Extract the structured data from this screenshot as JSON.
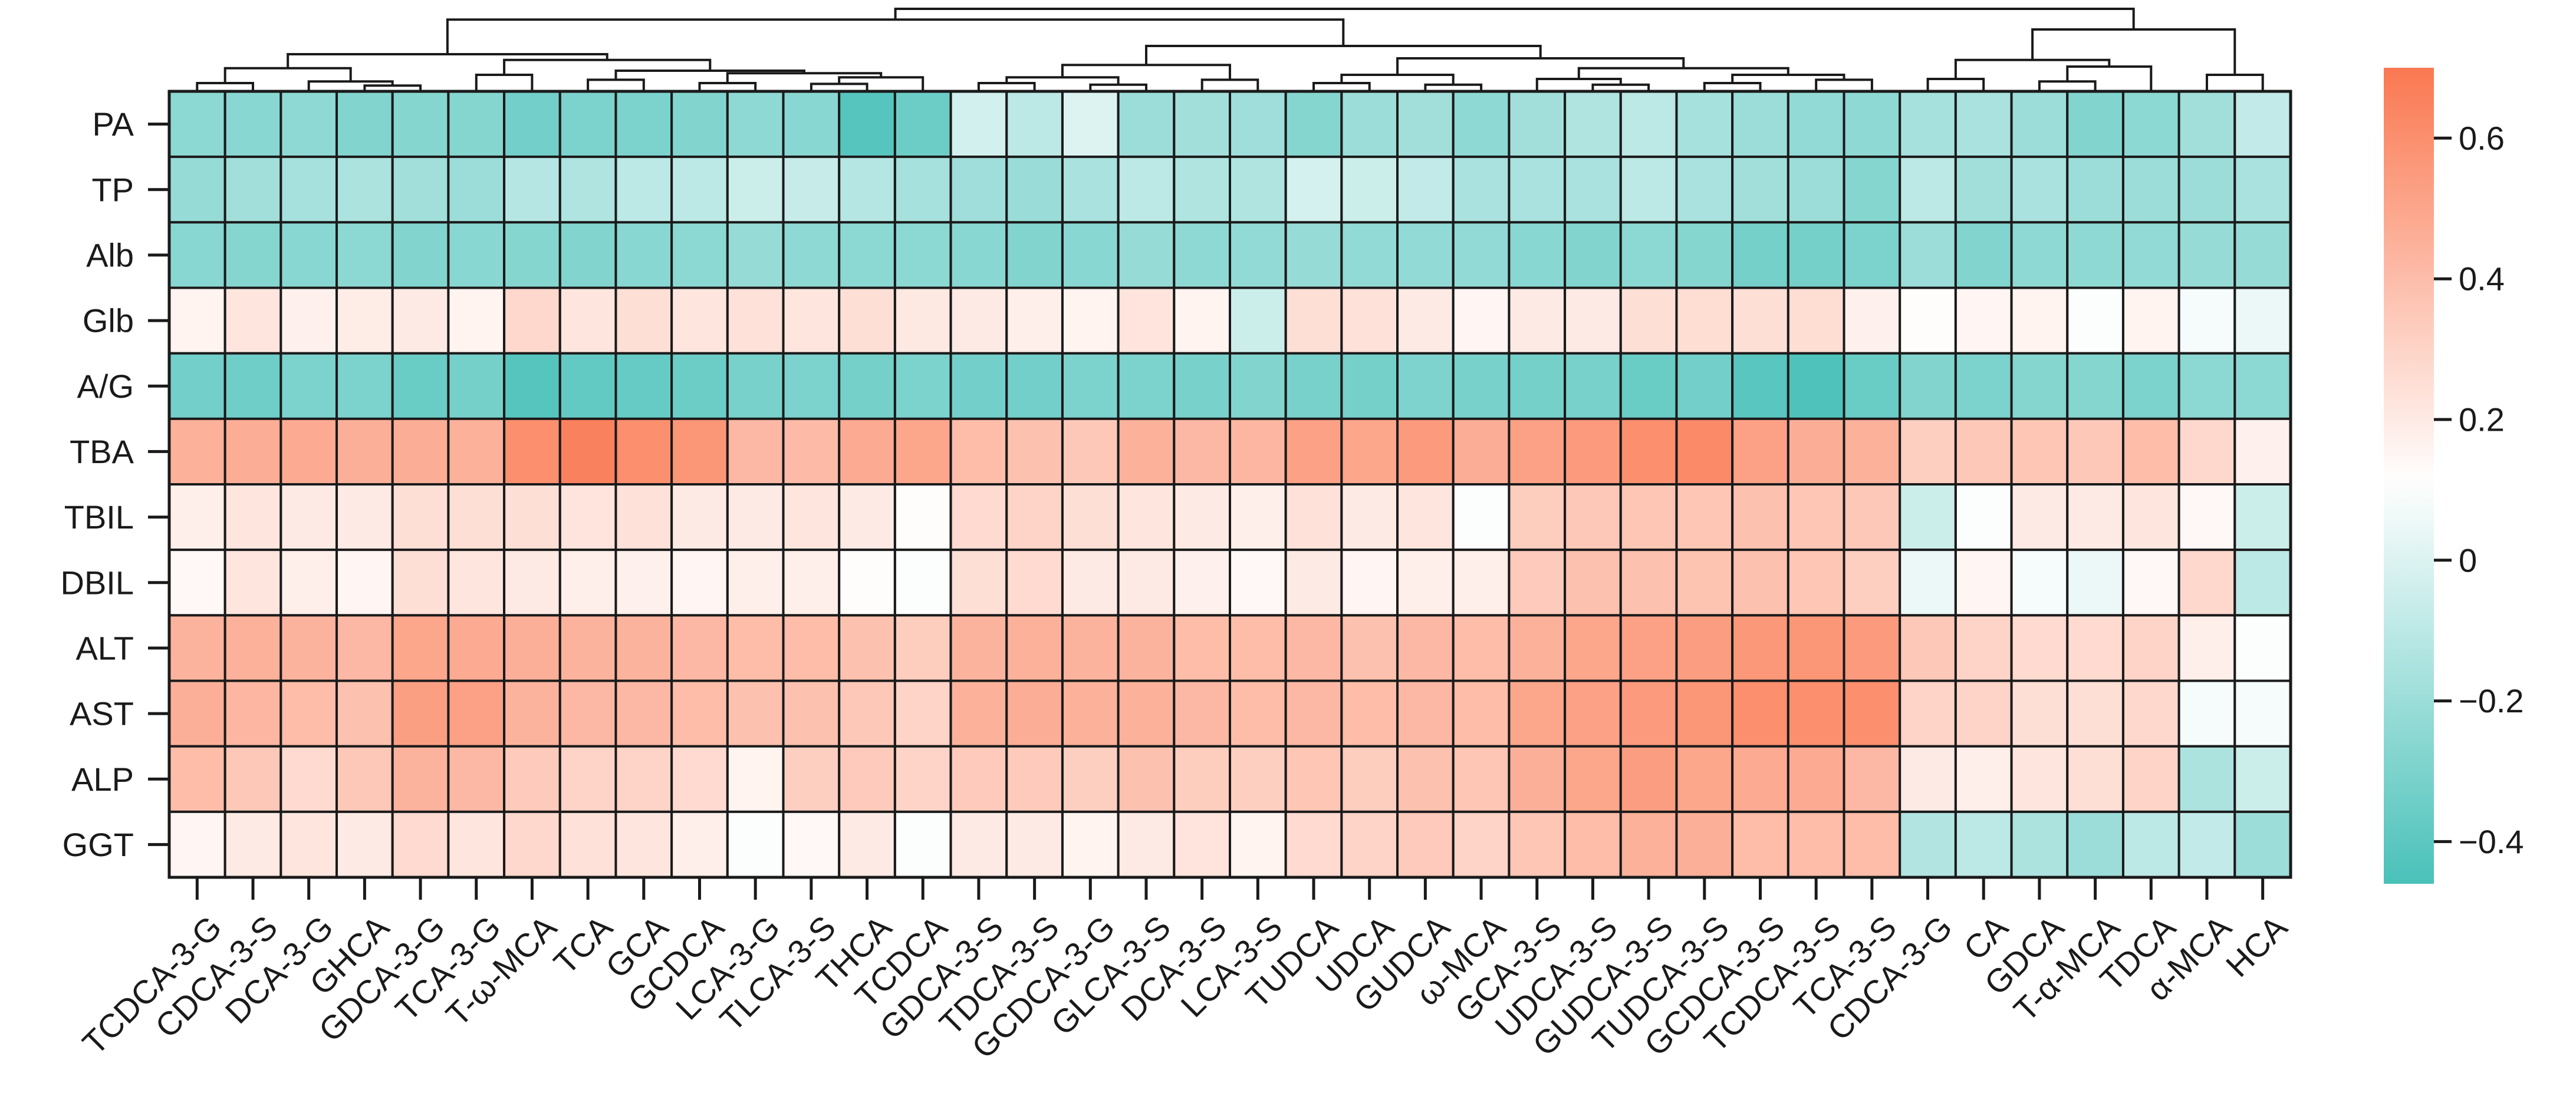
{
  "chart_data": {
    "type": "heatmap",
    "title": "",
    "xlabel": "",
    "ylabel": "",
    "rows": [
      "PA",
      "TP",
      "Alb",
      "Glb",
      "A/G",
      "TBA",
      "TBIL",
      "DBIL",
      "ALT",
      "AST",
      "ALP",
      "GGT"
    ],
    "columns": [
      "TCDCA-3-G",
      "CDCA-3-S",
      "DCA-3-G",
      "GHCA",
      "GDCA-3-G",
      "TCA-3-G",
      "T-ω-MCA",
      "TCA",
      "GCA",
      "GCDCA",
      "LCA-3-G",
      "TLCA-3-S",
      "THCA",
      "TCDCA",
      "GDCA-3-S",
      "TDCA-3-S",
      "GCDCA-3-G",
      "GLCA-3-S",
      "DCA-3-S",
      "LCA-3-S",
      "TUDCA",
      "UDCA",
      "GUDCA",
      "ω-MCA",
      "GCA-3-S",
      "UDCA-3-S",
      "GUDCA-3-S",
      "TUDCA-3-S",
      "GCDCA-3-S",
      "TCDCA-3-S",
      "TCA-3-S",
      "CDCA-3-G",
      "CA",
      "GDCA",
      "T-α-MCA",
      "TDCA",
      "α-MCA",
      "HCA"
    ],
    "values": [
      [
        -0.25,
        -0.26,
        -0.24,
        -0.28,
        -0.27,
        -0.27,
        -0.33,
        -0.3,
        -0.3,
        -0.28,
        -0.24,
        -0.26,
        -0.42,
        -0.35,
        -0.03,
        -0.1,
        0.0,
        -0.2,
        -0.18,
        -0.19,
        -0.27,
        -0.2,
        -0.18,
        -0.24,
        -0.18,
        -0.14,
        -0.1,
        -0.17,
        -0.2,
        -0.23,
        -0.24,
        -0.17,
        -0.16,
        -0.2,
        -0.28,
        -0.25,
        -0.18,
        -0.08
      ],
      [
        -0.22,
        -0.18,
        -0.17,
        -0.15,
        -0.18,
        -0.2,
        -0.12,
        -0.14,
        -0.1,
        -0.1,
        -0.05,
        -0.07,
        -0.12,
        -0.17,
        -0.19,
        -0.21,
        -0.16,
        -0.1,
        -0.14,
        -0.14,
        -0.02,
        -0.05,
        -0.08,
        -0.16,
        -0.16,
        -0.16,
        -0.1,
        -0.16,
        -0.18,
        -0.2,
        -0.27,
        -0.1,
        -0.18,
        -0.16,
        -0.2,
        -0.2,
        -0.2,
        -0.16
      ],
      [
        -0.26,
        -0.27,
        -0.26,
        -0.25,
        -0.28,
        -0.26,
        -0.27,
        -0.28,
        -0.26,
        -0.25,
        -0.22,
        -0.24,
        -0.25,
        -0.25,
        -0.26,
        -0.28,
        -0.26,
        -0.22,
        -0.24,
        -0.23,
        -0.22,
        -0.23,
        -0.23,
        -0.23,
        -0.26,
        -0.28,
        -0.25,
        -0.27,
        -0.32,
        -0.32,
        -0.3,
        -0.2,
        -0.28,
        -0.24,
        -0.24,
        -0.23,
        -0.22,
        -0.22
      ],
      [
        0.16,
        0.22,
        0.17,
        0.19,
        0.2,
        0.16,
        0.28,
        0.22,
        0.25,
        0.22,
        0.24,
        0.22,
        0.25,
        0.21,
        0.2,
        0.18,
        0.16,
        0.23,
        0.16,
        -0.05,
        0.25,
        0.24,
        0.2,
        0.15,
        0.2,
        0.2,
        0.25,
        0.26,
        0.25,
        0.26,
        0.17,
        0.12,
        0.15,
        0.16,
        0.1,
        0.16,
        0.08,
        0.05
      ],
      [
        -0.33,
        -0.34,
        -0.3,
        -0.3,
        -0.36,
        -0.32,
        -0.42,
        -0.38,
        -0.37,
        -0.35,
        -0.31,
        -0.3,
        -0.32,
        -0.3,
        -0.33,
        -0.33,
        -0.3,
        -0.3,
        -0.31,
        -0.28,
        -0.31,
        -0.32,
        -0.29,
        -0.31,
        -0.32,
        -0.31,
        -0.36,
        -0.33,
        -0.41,
        -0.44,
        -0.36,
        -0.28,
        -0.3,
        -0.27,
        -0.27,
        -0.3,
        -0.25,
        -0.25
      ],
      [
        0.45,
        0.47,
        0.48,
        0.46,
        0.47,
        0.45,
        0.6,
        0.66,
        0.6,
        0.57,
        0.42,
        0.41,
        0.48,
        0.5,
        0.4,
        0.38,
        0.35,
        0.45,
        0.42,
        0.43,
        0.52,
        0.5,
        0.55,
        0.47,
        0.52,
        0.55,
        0.6,
        0.62,
        0.52,
        0.47,
        0.45,
        0.32,
        0.35,
        0.36,
        0.35,
        0.4,
        0.28,
        0.17
      ],
      [
        0.18,
        0.22,
        0.2,
        0.2,
        0.25,
        0.25,
        0.25,
        0.23,
        0.24,
        0.2,
        0.2,
        0.22,
        0.2,
        0.12,
        0.27,
        0.3,
        0.25,
        0.22,
        0.2,
        0.18,
        0.24,
        0.2,
        0.22,
        0.1,
        0.33,
        0.35,
        0.36,
        0.36,
        0.38,
        0.36,
        0.35,
        -0.05,
        0.1,
        0.2,
        0.2,
        0.22,
        0.14,
        -0.05
      ],
      [
        0.14,
        0.22,
        0.18,
        0.15,
        0.25,
        0.22,
        0.2,
        0.18,
        0.17,
        0.15,
        0.18,
        0.18,
        0.12,
        0.1,
        0.25,
        0.27,
        0.2,
        0.2,
        0.17,
        0.14,
        0.2,
        0.15,
        0.18,
        0.18,
        0.34,
        0.38,
        0.38,
        0.37,
        0.38,
        0.36,
        0.32,
        0.05,
        0.15,
        0.08,
        0.05,
        0.14,
        0.28,
        -0.1
      ],
      [
        0.44,
        0.45,
        0.44,
        0.42,
        0.5,
        0.48,
        0.46,
        0.44,
        0.44,
        0.42,
        0.4,
        0.4,
        0.38,
        0.33,
        0.44,
        0.45,
        0.44,
        0.44,
        0.4,
        0.4,
        0.42,
        0.38,
        0.42,
        0.4,
        0.45,
        0.5,
        0.52,
        0.54,
        0.56,
        0.57,
        0.55,
        0.35,
        0.3,
        0.27,
        0.27,
        0.3,
        0.18,
        0.1
      ],
      [
        0.46,
        0.43,
        0.4,
        0.38,
        0.53,
        0.52,
        0.44,
        0.42,
        0.42,
        0.4,
        0.38,
        0.38,
        0.35,
        0.3,
        0.45,
        0.47,
        0.45,
        0.45,
        0.42,
        0.4,
        0.42,
        0.4,
        0.42,
        0.4,
        0.5,
        0.52,
        0.55,
        0.57,
        0.6,
        0.6,
        0.6,
        0.3,
        0.3,
        0.25,
        0.25,
        0.28,
        0.08,
        0.08
      ],
      [
        0.4,
        0.35,
        0.27,
        0.35,
        0.44,
        0.42,
        0.34,
        0.3,
        0.3,
        0.27,
        0.16,
        0.32,
        0.34,
        0.3,
        0.34,
        0.34,
        0.32,
        0.38,
        0.33,
        0.32,
        0.36,
        0.33,
        0.38,
        0.36,
        0.46,
        0.5,
        0.54,
        0.5,
        0.48,
        0.48,
        0.42,
        0.2,
        0.18,
        0.22,
        0.25,
        0.3,
        -0.15,
        -0.05
      ],
      [
        0.15,
        0.2,
        0.22,
        0.2,
        0.27,
        0.22,
        0.28,
        0.24,
        0.22,
        0.18,
        0.1,
        0.14,
        0.2,
        0.1,
        0.2,
        0.2,
        0.16,
        0.2,
        0.23,
        0.16,
        0.27,
        0.3,
        0.34,
        0.3,
        0.36,
        0.4,
        0.45,
        0.46,
        0.4,
        0.4,
        0.4,
        -0.13,
        -0.1,
        -0.15,
        -0.2,
        -0.1,
        -0.08,
        -0.2
      ]
    ],
    "color_scale": {
      "min": -0.46,
      "max": 0.7,
      "neutral_value": 0.11,
      "low_color": "#49c1b9",
      "mid_color": "#ffffff",
      "high_color": "#fa7851",
      "ticks": [
        -0.4,
        -0.2,
        0,
        0.2,
        0.4,
        0.6
      ],
      "tick_labels": [
        "−0.4",
        "−0.2",
        "0",
        "0.2",
        "0.4",
        "0.6"
      ]
    },
    "dendrogram": "column",
    "legend_placement": "right"
  }
}
